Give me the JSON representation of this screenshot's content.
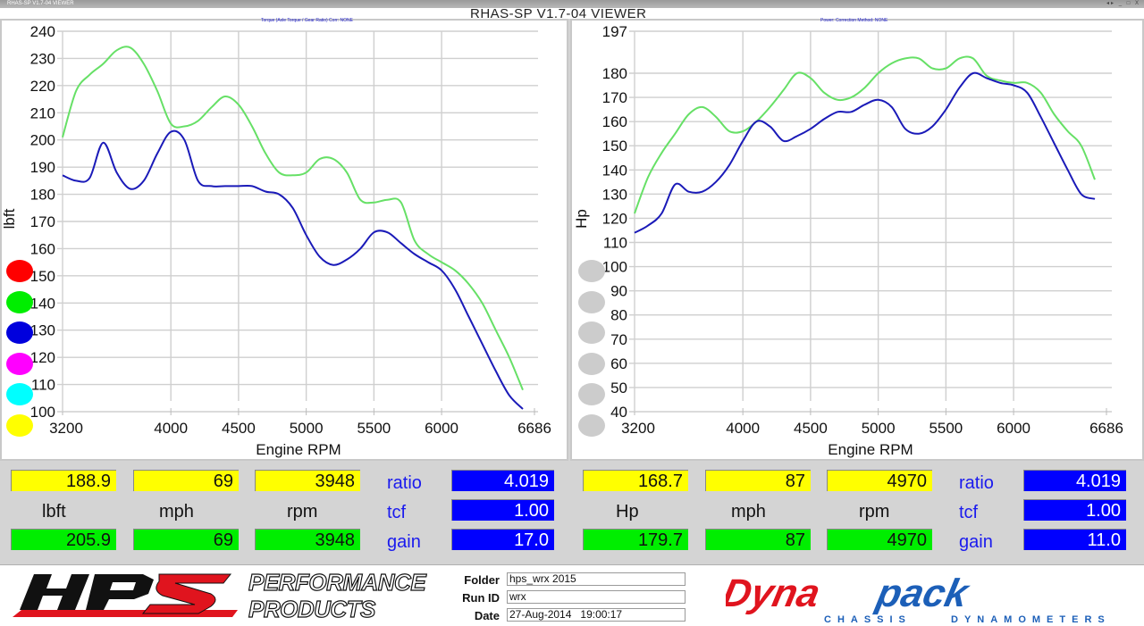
{
  "window": {
    "titlebar_text": "RHAS-SP V1.7-04  VIEWER",
    "app_title": "RHAS-SP V1.7-04  VIEWER",
    "controls": "◂▸ _ □ X"
  },
  "left_panel": {
    "subtitle": "Torque (Axle Torque / Gear Ratio)     Corr: NONE",
    "y_label": "lbft",
    "x_label": "Engine RPM",
    "legend_dots": [
      "#ff0000",
      "#00ee00",
      "#0000dd",
      "#ff00ff",
      "#00ffff",
      "#ffff00"
    ]
  },
  "right_panel": {
    "subtitle": "Power:    Correction Method: NONE",
    "y_label": "Hp",
    "x_label": "Engine RPM",
    "legend_dots": [
      "#cccccc",
      "#cccccc",
      "#cccccc",
      "#cccccc",
      "#cccccc",
      "#cccccc"
    ]
  },
  "chart_data": [
    {
      "type": "line",
      "title": "Torque (Axle Torque / Gear Ratio)  Corr: NONE",
      "xlabel": "Engine RPM",
      "ylabel": "lbft",
      "xlim": [
        3200,
        6686
      ],
      "ylim": [
        100,
        240
      ],
      "x_ticks": [
        "3200",
        "4000",
        "4500",
        "5000",
        "5500",
        "6000",
        "6686"
      ],
      "y_ticks": [
        "240",
        "230",
        "220",
        "210",
        "200",
        "190",
        "180",
        "170",
        "160",
        "150",
        "140",
        "130",
        "120",
        "110",
        "100"
      ],
      "grid": true,
      "series": [
        {
          "name": "run-green",
          "color": "#66e066",
          "x": [
            3200,
            3300,
            3400,
            3500,
            3600,
            3700,
            3800,
            3900,
            4000,
            4100,
            4200,
            4300,
            4400,
            4500,
            4600,
            4700,
            4800,
            4900,
            5000,
            5100,
            5200,
            5300,
            5400,
            5500,
            5600,
            5700,
            5800,
            5900,
            6000,
            6100,
            6200,
            6300,
            6400,
            6500,
            6600
          ],
          "values": [
            201,
            218,
            224,
            228,
            233,
            234,
            228,
            218,
            206,
            205,
            207,
            212,
            216,
            213,
            205,
            195,
            188,
            187,
            188,
            193,
            193,
            188,
            178,
            177,
            178,
            177,
            163,
            158,
            155,
            152,
            147,
            140,
            130,
            120,
            108
          ]
        },
        {
          "name": "run-blue",
          "color": "#1a1ab8",
          "x": [
            3200,
            3300,
            3400,
            3500,
            3600,
            3700,
            3800,
            3900,
            4000,
            4100,
            4200,
            4300,
            4400,
            4500,
            4600,
            4700,
            4800,
            4900,
            5000,
            5100,
            5200,
            5300,
            5400,
            5500,
            5600,
            5700,
            5800,
            5900,
            6000,
            6100,
            6200,
            6300,
            6400,
            6500,
            6600
          ],
          "values": [
            187,
            185,
            186,
            199,
            188,
            182,
            185,
            195,
            203,
            200,
            185,
            183,
            183,
            183,
            183,
            181,
            180,
            175,
            165,
            157,
            154,
            156,
            160,
            166,
            166,
            162,
            158,
            155,
            152,
            145,
            135,
            125,
            115,
            106,
            101
          ]
        }
      ]
    },
    {
      "type": "line",
      "title": "Power:  Correction Method: NONE",
      "xlabel": "Engine RPM",
      "ylabel": "Hp",
      "xlim": [
        3200,
        6686
      ],
      "ylim": [
        40,
        197
      ],
      "x_ticks": [
        "3200",
        "4000",
        "4500",
        "5000",
        "5500",
        "6000",
        "6686"
      ],
      "y_ticks": [
        "197",
        "180",
        "170",
        "160",
        "150",
        "140",
        "130",
        "120",
        "110",
        "100",
        "90",
        "80",
        "70",
        "60",
        "50",
        "40"
      ],
      "grid": true,
      "series": [
        {
          "name": "run-green",
          "color": "#66e066",
          "x": [
            3200,
            3300,
            3400,
            3500,
            3600,
            3700,
            3800,
            3900,
            4000,
            4100,
            4200,
            4300,
            4400,
            4500,
            4600,
            4700,
            4800,
            4900,
            5000,
            5100,
            5200,
            5300,
            5400,
            5500,
            5600,
            5700,
            5800,
            5900,
            6000,
            6100,
            6200,
            6300,
            6400,
            6500,
            6600
          ],
          "values": [
            122,
            137,
            147,
            155,
            163,
            166,
            162,
            156,
            156,
            160,
            166,
            173,
            180,
            178,
            172,
            169,
            170,
            174,
            180,
            184,
            186,
            186,
            182,
            182,
            186,
            186,
            179,
            177,
            176,
            176,
            172,
            163,
            156,
            150,
            136
          ]
        },
        {
          "name": "run-blue",
          "color": "#1a1ab8",
          "x": [
            3200,
            3300,
            3400,
            3500,
            3600,
            3700,
            3800,
            3900,
            4000,
            4100,
            4200,
            4300,
            4400,
            4500,
            4600,
            4700,
            4800,
            4900,
            5000,
            5100,
            5200,
            5300,
            5400,
            5500,
            5600,
            5700,
            5800,
            5900,
            6000,
            6100,
            6200,
            6300,
            6400,
            6500,
            6600
          ],
          "values": [
            114,
            117,
            122,
            134,
            131,
            131,
            135,
            142,
            152,
            160,
            158,
            152,
            154,
            157,
            161,
            164,
            164,
            167,
            169,
            166,
            157,
            155,
            158,
            165,
            174,
            180,
            178,
            176,
            175,
            172,
            162,
            151,
            140,
            130,
            128
          ]
        }
      ]
    }
  ],
  "readouts": {
    "left": {
      "top": [
        "188.9",
        "69",
        "3948"
      ],
      "units": [
        "lbft",
        "mph",
        "rpm"
      ],
      "bottom": [
        "205.9",
        "69",
        "3948"
      ],
      "ratio_label": "ratio",
      "ratio": "4.019",
      "tcf_label": "tcf",
      "tcf": "1.00",
      "gain_label": "gain",
      "gain": "17.0"
    },
    "right": {
      "top": [
        "168.7",
        "87",
        "4970"
      ],
      "units": [
        "Hp",
        "mph",
        "rpm"
      ],
      "bottom": [
        "179.7",
        "87",
        "4970"
      ],
      "ratio_label": "ratio",
      "ratio": "4.019",
      "tcf_label": "tcf",
      "tcf": "1.00",
      "gain_label": "gain",
      "gain": "11.0"
    }
  },
  "footer": {
    "hps_logo": "HPS",
    "hps_tagline_1": "PERFORMANCE",
    "hps_tagline_2": "PRODUCTS",
    "folder_label": "Folder",
    "folder": "hps_wrx 2015",
    "runid_label": "Run ID",
    "runid": "wrx",
    "date_label": "Date",
    "date": "27-Aug-2014   19:00:17",
    "dynapack_a": "Dyna",
    "dynapack_b": "pack",
    "dynapack_tag_1": "CHASSIS",
    "dynapack_tag_2": "DYNAMOMETERS",
    "colors": {
      "red": "#e0141e",
      "blue": "#1c5fb8",
      "black": "#111111"
    }
  }
}
